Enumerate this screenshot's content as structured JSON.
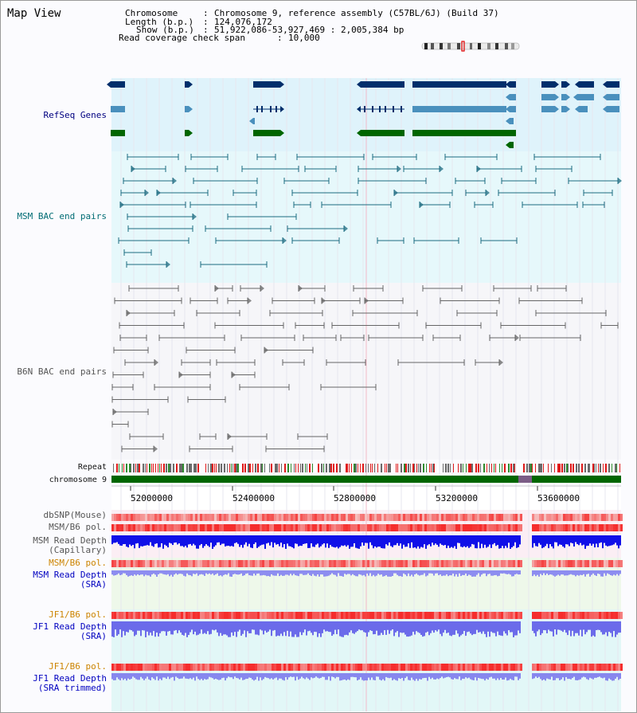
{
  "page": {
    "title": "Map View"
  },
  "info": {
    "chromosome_label": "Chromosome",
    "chromosome_value": "Chromosome 9, reference assembly (C57BL/6J) (Build 37)",
    "length_label": "Length (b.p.)",
    "length_value": "124,076,172",
    "show_label": "Show (b.p.)",
    "show_value": "51,922,086-53,927,469 : 2,005,384 bp",
    "coverage_label": "Read coverage check span",
    "coverage_value": "10,000"
  },
  "tracks": {
    "refseq": "RefSeq Genes",
    "msm_bac": "MSM BAC end pairs",
    "b6n_bac": "B6N BAC end pairs",
    "repeat": "Repeat",
    "chromosome": "chromosome 9",
    "dbsnp": "dbSNP(Mouse)",
    "msm_b6_pol_1": "MSM/B6 pol.",
    "msm_depth_cap_1": "MSM Read Depth",
    "msm_depth_cap_2": "(Capillary)",
    "msm_b6_pol_2": "MSM/B6 pol.",
    "msm_depth_sra_1": "MSM Read Depth",
    "msm_depth_sra_2": "(SRA)",
    "jf1_b6_pol_1": "JF1/B6 pol.",
    "jf1_depth_sra_1": "JF1 Read Depth",
    "jf1_depth_sra_2": "(SRA)",
    "jf1_b6_pol_2": "JF1/B6 pol.",
    "jf1_depth_trim_1": "JF1 Read Depth",
    "jf1_depth_trim_2": "(SRA trimmed)"
  },
  "axis": {
    "ticks": [
      "52000000",
      "52400000",
      "52800000",
      "53200000",
      "53600000"
    ]
  },
  "colors": {
    "refseq_dark": "#002e6b",
    "refseq_light": "#4a90bd",
    "refseq_green": "#006600",
    "msm_bac": "#1c6b80",
    "b6n_bac": "#666666",
    "chromosome_bar": "#006600",
    "depth_blue": "#1010e8",
    "depth_light": "#7d7dec"
  }
}
